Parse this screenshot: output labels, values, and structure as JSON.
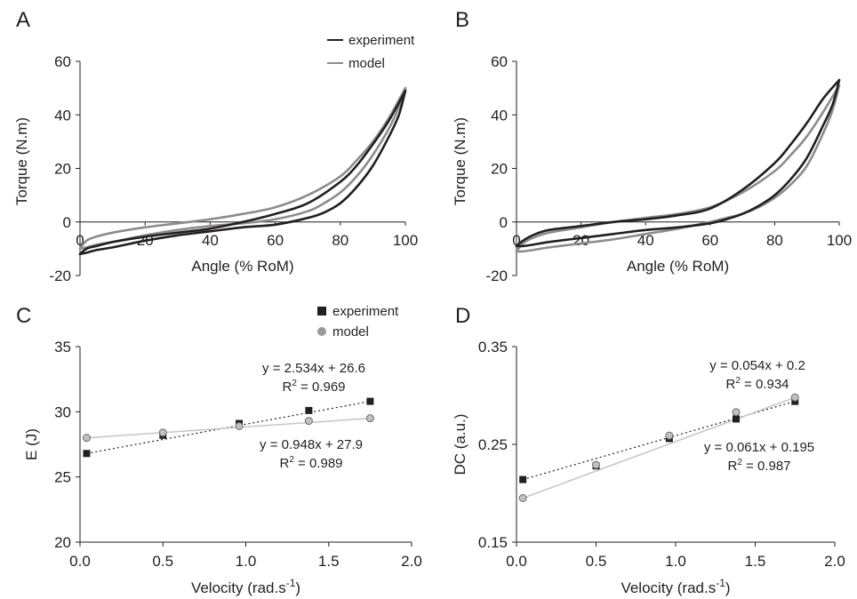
{
  "colors": {
    "experiment": "#231f20",
    "model": "#8c8c8c",
    "model_fit": "#c8c8c8",
    "axis": "#231f20"
  },
  "chart_data": [
    {
      "id": "A",
      "panel_label": "A",
      "type": "line",
      "xlabel": "Angle (% RoM)",
      "ylabel": "Torque (N.m)",
      "xlim": [
        0,
        100
      ],
      "ylim": [
        -20,
        60
      ],
      "xticks": [
        "0",
        "20",
        "40",
        "60",
        "80",
        "100"
      ],
      "yticks": [
        "-20",
        "0",
        "20",
        "40",
        "60"
      ],
      "grid": false,
      "legend_position": "top-right",
      "legend": [
        {
          "label": "experiment",
          "series": "experiment"
        },
        {
          "label": "model",
          "series": "model"
        }
      ],
      "series": [
        {
          "name": "experiment",
          "x": [
            0,
            2,
            5,
            10,
            20,
            30,
            40,
            50,
            60,
            70,
            80,
            85,
            90,
            95,
            100
          ],
          "y": [
            -12,
            -10,
            -9,
            -7.5,
            -5.5,
            -4,
            -2.5,
            0,
            3,
            7,
            15,
            21,
            29,
            38,
            49
          ],
          "role": "loading"
        },
        {
          "name": "experiment",
          "x": [
            100,
            98,
            95,
            90,
            85,
            80,
            75,
            70,
            60,
            50,
            40,
            30,
            20,
            10,
            5,
            2,
            0
          ],
          "y": [
            49,
            40,
            32,
            21,
            13,
            7,
            3.5,
            1.5,
            -1,
            -2,
            -3.5,
            -5,
            -7,
            -9.5,
            -10.5,
            -11.5,
            -12
          ],
          "role": "unloading"
        },
        {
          "name": "model",
          "x": [
            0,
            2,
            5,
            10,
            20,
            30,
            40,
            50,
            60,
            70,
            80,
            85,
            90,
            95,
            100
          ],
          "y": [
            -10,
            -7,
            -5.5,
            -4,
            -2,
            -0.5,
            1,
            3,
            5.5,
            10,
            17,
            23,
            30,
            39,
            50
          ],
          "role": "loading"
        },
        {
          "name": "model",
          "x": [
            100,
            98,
            95,
            90,
            85,
            80,
            75,
            70,
            60,
            50,
            40,
            30,
            20,
            10,
            5,
            2,
            0
          ],
          "y": [
            50,
            43,
            35,
            25,
            17,
            11,
            7,
            4,
            1,
            -0.5,
            -1.5,
            -3,
            -5,
            -7.5,
            -8.5,
            -9.5,
            -10
          ],
          "role": "unloading"
        }
      ]
    },
    {
      "id": "B",
      "panel_label": "B",
      "type": "line",
      "xlabel": "Angle (% RoM)",
      "ylabel": "Torque (N.m)",
      "xlim": [
        0,
        100
      ],
      "ylim": [
        -20,
        60
      ],
      "xticks": [
        "0",
        "20",
        "40",
        "60",
        "80",
        "100"
      ],
      "yticks": [
        "-20",
        "0",
        "20",
        "40",
        "60"
      ],
      "grid": false,
      "series": [
        {
          "name": "experiment",
          "x": [
            0,
            2,
            5,
            10,
            20,
            30,
            40,
            50,
            60,
            70,
            80,
            85,
            90,
            95,
            100
          ],
          "y": [
            -9,
            -7,
            -5,
            -3,
            -1.5,
            0,
            1,
            2.5,
            5,
            12,
            22,
            29,
            37,
            46,
            53
          ],
          "role": "loading"
        },
        {
          "name": "experiment",
          "x": [
            100,
            98,
            95,
            90,
            85,
            80,
            75,
            70,
            65,
            60,
            50,
            40,
            30,
            20,
            10,
            5,
            2,
            0
          ],
          "y": [
            53,
            44,
            36,
            24,
            16,
            10,
            6,
            3,
            1,
            -0.5,
            -2,
            -3,
            -4.5,
            -6,
            -7.5,
            -8.5,
            -9,
            -9
          ],
          "role": "unloading"
        },
        {
          "name": "model",
          "x": [
            0,
            2,
            5,
            10,
            20,
            30,
            40,
            50,
            60,
            70,
            80,
            85,
            90,
            95,
            100
          ],
          "y": [
            -11,
            -8,
            -6,
            -4,
            -2,
            0,
            1.5,
            3,
            5.5,
            11,
            19,
            25,
            32,
            41,
            51
          ],
          "role": "loading"
        },
        {
          "name": "model",
          "x": [
            100,
            98,
            95,
            90,
            85,
            80,
            75,
            70,
            65,
            60,
            50,
            40,
            30,
            20,
            10,
            5,
            2,
            0
          ],
          "y": [
            51,
            42,
            33,
            21,
            14,
            9,
            5.5,
            3,
            1.5,
            0,
            -2.5,
            -4.5,
            -6.5,
            -8,
            -9.5,
            -10.5,
            -11,
            -11
          ],
          "role": "unloading"
        }
      ]
    },
    {
      "id": "C",
      "panel_label": "C",
      "type": "scatter",
      "xlabel": "Velocity (rad.s",
      "xlabel_sup": "-1",
      "xlabel_end": ")",
      "ylabel": "E (J)",
      "xlim": [
        0,
        2
      ],
      "ylim": [
        20,
        35
      ],
      "xticks": [
        "0.0",
        "0.5",
        "1.0",
        "1.5",
        "2.0"
      ],
      "yticks": [
        "20",
        "25",
        "30",
        "35"
      ],
      "grid": false,
      "legend_position": "top-right",
      "legend": [
        {
          "label": "experiment",
          "series": "experiment"
        },
        {
          "label": "model",
          "series": "model"
        }
      ],
      "series": [
        {
          "name": "experiment",
          "marker": "square",
          "x": [
            0.04,
            0.5,
            0.96,
            1.38,
            1.75
          ],
          "y": [
            26.8,
            28.2,
            29.1,
            30.1,
            30.8
          ],
          "fit": {
            "slope": 2.534,
            "intercept": 26.6,
            "style": "dotted",
            "x_range": [
              0.04,
              1.75
            ]
          }
        },
        {
          "name": "model",
          "marker": "circle",
          "x": [
            0.04,
            0.5,
            0.96,
            1.38,
            1.75
          ],
          "y": [
            28.0,
            28.4,
            28.9,
            29.3,
            29.5
          ],
          "fit": {
            "slope": 0.948,
            "intercept": 27.9,
            "style": "solid",
            "x_range": [
              0.04,
              1.75
            ]
          }
        }
      ],
      "annotations": [
        {
          "series": "experiment",
          "eq": "y = 2.534x + 26.6",
          "r2_label": "R",
          "r2_sup": "2",
          "r2_value": " = 0.969"
        },
        {
          "series": "model",
          "eq": "y = 0.948x + 27.9",
          "r2_label": "R",
          "r2_sup": "2",
          "r2_value": " = 0.989"
        }
      ]
    },
    {
      "id": "D",
      "panel_label": "D",
      "type": "scatter",
      "xlabel": "Velocity (rad.s",
      "xlabel_sup": "-1",
      "xlabel_end": ")",
      "ylabel": "DC (a.u.)",
      "xlim": [
        0,
        2
      ],
      "ylim": [
        0.15,
        0.35
      ],
      "xticks": [
        "0.0",
        "0.5",
        "1.0",
        "1.5",
        "2.0"
      ],
      "yticks": [
        "0.15",
        "0.25",
        "0.35"
      ],
      "grid": false,
      "series": [
        {
          "name": "experiment",
          "marker": "square",
          "x": [
            0.04,
            0.5,
            0.96,
            1.38,
            1.75
          ],
          "y": [
            0.214,
            0.228,
            0.256,
            0.276,
            0.294
          ],
          "fit": {
            "slope": 0.054,
            "intercept": 0.2,
            "style": "dotted",
            "x_range": [
              0.04,
              1.75
            ]
          }
        },
        {
          "name": "model",
          "marker": "circle",
          "x": [
            0.04,
            0.5,
            0.96,
            1.38,
            1.75
          ],
          "y": [
            0.195,
            0.229,
            0.259,
            0.283,
            0.298
          ],
          "fit": {
            "slope": 0.061,
            "intercept": 0.195,
            "style": "solid",
            "x_range": [
              0.04,
              1.75
            ]
          }
        }
      ],
      "annotations": [
        {
          "series": "experiment",
          "eq": "y = 0.054x + 0.2",
          "r2_label": "R",
          "r2_sup": "2",
          "r2_value": " = 0.934"
        },
        {
          "series": "model",
          "eq": "y = 0.061x + 0.195",
          "r2_label": "R",
          "r2_sup": "2",
          "r2_value": " = 0.987"
        }
      ]
    }
  ]
}
